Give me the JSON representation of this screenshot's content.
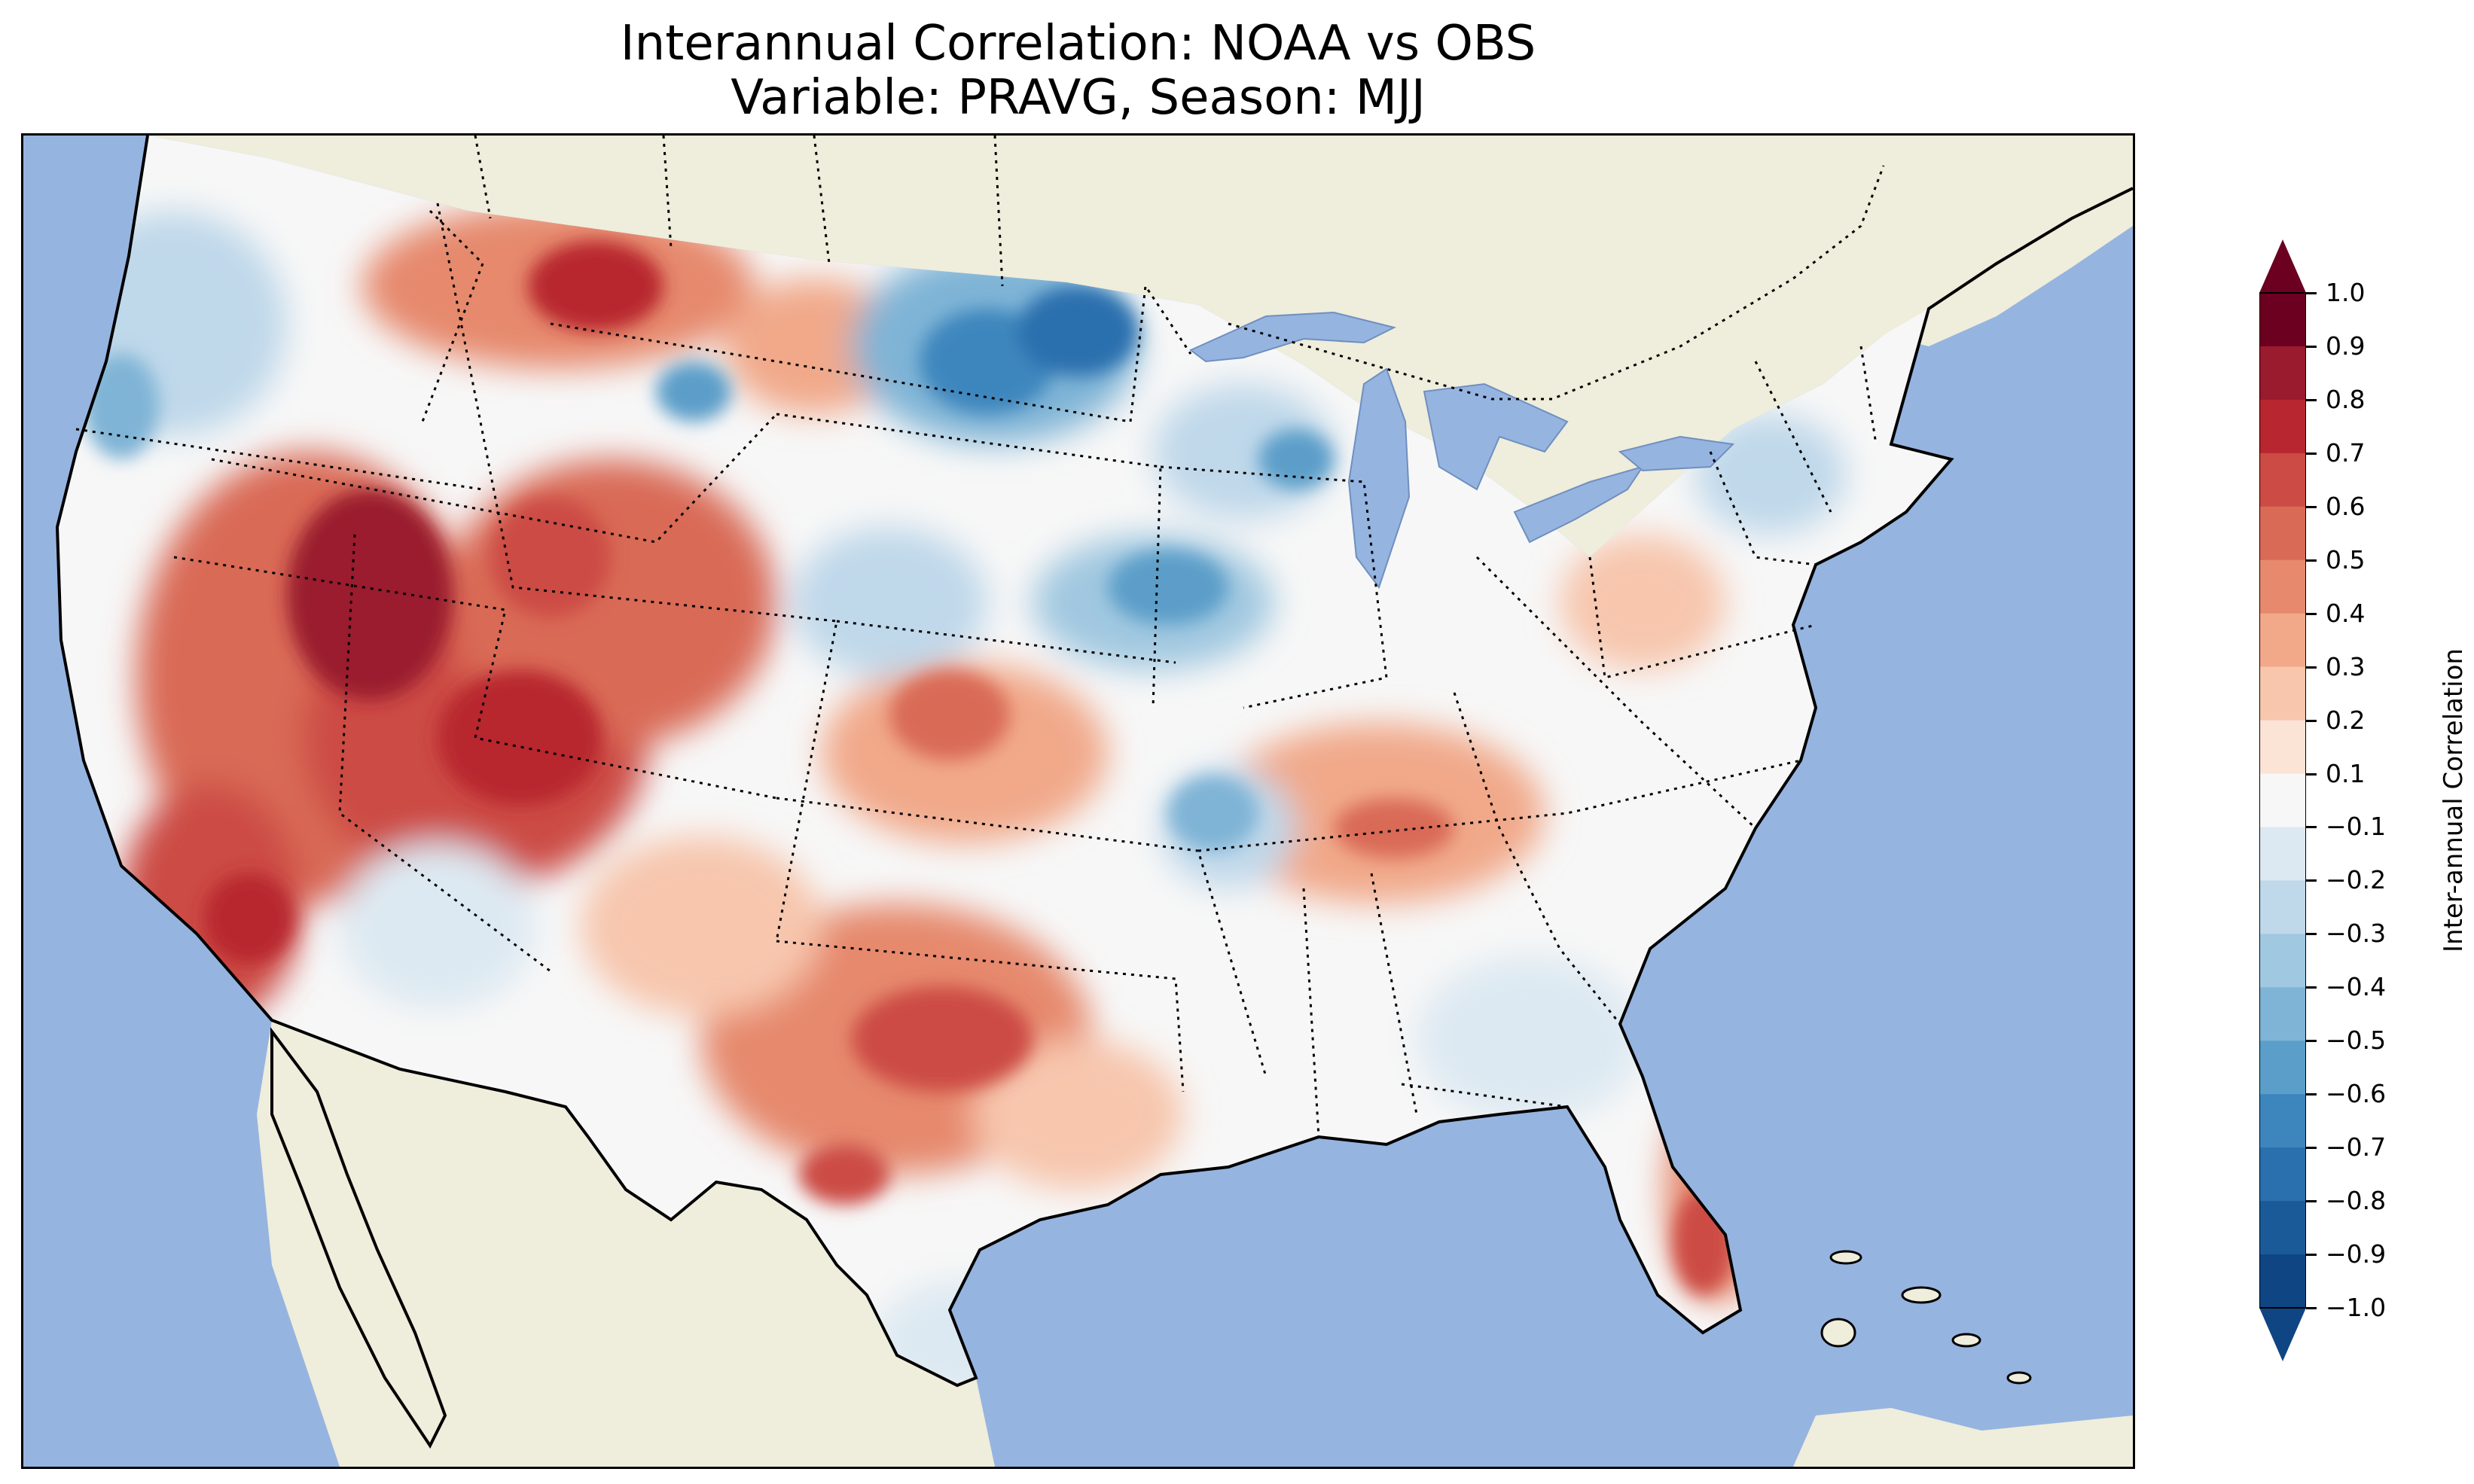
{
  "title_line1": "Interannual Correlation: NOAA vs OBS",
  "title_line2": "Variable: PRAVG, Season: MJJ",
  "colorbar": {
    "label": "Inter-annual Correlation",
    "ticks": [
      "1.0",
      "0.9",
      "0.8",
      "0.7",
      "0.6",
      "0.5",
      "0.4",
      "0.3",
      "0.2",
      "0.1",
      "−0.1",
      "−0.2",
      "−0.3",
      "−0.4",
      "−0.5",
      "−0.6",
      "−0.7",
      "−0.8",
      "−0.9",
      "−1.0"
    ],
    "colors_top_to_bottom": [
      "#6b0020",
      "#9a1a2e",
      "#b8262f",
      "#cc4b44",
      "#d96a56",
      "#e6896d",
      "#f1a98a",
      "#f7c6ad",
      "#fbe3d6",
      "#f7f7f7",
      "#dde9f2",
      "#bfd8ea",
      "#a0c8e0",
      "#7fb4d6",
      "#5b9ec9",
      "#3d86bd",
      "#2a6fae",
      "#1b5a99",
      "#0f4582"
    ]
  },
  "map": {
    "projection": "Lambert Conformal over continental United States",
    "ocean_color": "#96b4e0",
    "land_color": "#efeddb",
    "lakes_color": "#96b4e0",
    "state_borders": "dotted",
    "coastlines": "solid"
  }
}
